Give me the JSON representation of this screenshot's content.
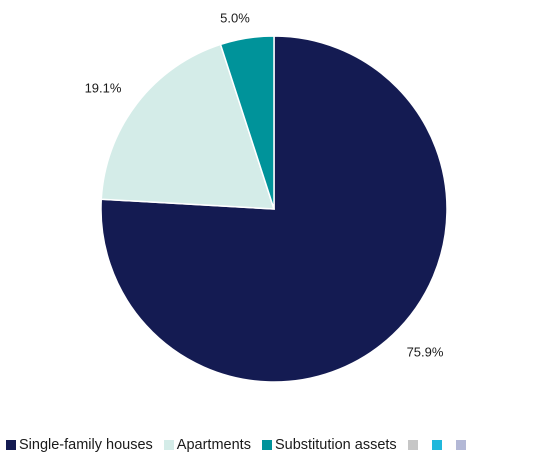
{
  "chart_data": {
    "type": "pie",
    "title": "",
    "slices": [
      {
        "label": "Single-family houses",
        "value": 75.9,
        "value_label": "75.9%",
        "color": "#141b52"
      },
      {
        "label": "Apartments",
        "value": 19.1,
        "value_label": "19.1%",
        "color": "#d4ece8"
      },
      {
        "label": "Substitution assets",
        "value": 5.0,
        "value_label": "5.0%",
        "color": "#00939a"
      }
    ],
    "legend_placement": "bottom",
    "legend": [
      {
        "label": "Single-family houses",
        "color": "#141b52"
      },
      {
        "label": "Apartments",
        "color": "#d4ece8"
      },
      {
        "label": "Substitution assets",
        "color": "#00939a"
      },
      {
        "label": "",
        "color": "#c6c6c6"
      },
      {
        "label": "",
        "color": "#20b8dc"
      },
      {
        "label": "",
        "color": "#b3b8d6"
      }
    ]
  }
}
